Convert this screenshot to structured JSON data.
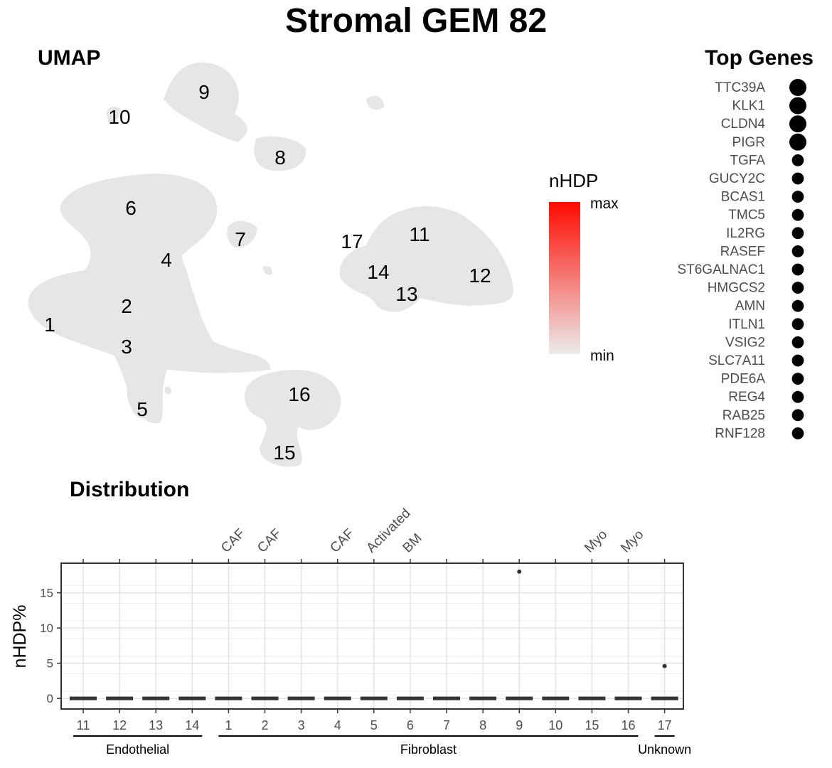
{
  "title": "Stromal GEM 82",
  "umap": {
    "heading": "UMAP",
    "cluster_labels": [
      "1",
      "2",
      "3",
      "4",
      "5",
      "6",
      "7",
      "8",
      "9",
      "10",
      "11",
      "12",
      "13",
      "14",
      "15",
      "16",
      "17"
    ]
  },
  "legend": {
    "title": "nHDP",
    "max_label": "max",
    "min_label": "min",
    "colors": {
      "high": "#ff0a00",
      "low": "#ececec"
    }
  },
  "top_genes": {
    "heading": "Top Genes",
    "genes": [
      "TTC39A",
      "KLK1",
      "CLDN4",
      "PIGR",
      "TGFA",
      "GUCY2C",
      "BCAS1",
      "TMC5",
      "IL2RG",
      "RASEF",
      "ST6GALNAC1",
      "HMGCS2",
      "AMN",
      "ITLN1",
      "VSIG2",
      "SLC7A11",
      "PDE6A",
      "REG4",
      "RAB25",
      "RNF128"
    ],
    "weights": [
      1.0,
      1.0,
      1.0,
      1.0,
      0.55,
      0.55,
      0.55,
      0.55,
      0.55,
      0.55,
      0.55,
      0.55,
      0.55,
      0.55,
      0.55,
      0.55,
      0.55,
      0.55,
      0.55,
      0.55
    ]
  },
  "chart_data": {
    "type": "box",
    "heading": "Distribution",
    "ylabel": "nHDP%",
    "ylim": [
      -1.5,
      19.2
    ],
    "yticks": [
      0,
      5,
      10,
      15
    ],
    "grid": true,
    "categories": [
      "11",
      "12",
      "13",
      "14",
      "1",
      "2",
      "3",
      "4",
      "5",
      "6",
      "7",
      "8",
      "9",
      "10",
      "15",
      "16",
      "17"
    ],
    "top_labels": [
      "",
      "",
      "",
      "",
      "CAF",
      "CAF",
      "",
      "CAF",
      "Activated",
      "BM",
      "",
      "",
      "",
      "",
      "Myo",
      "Myo",
      ""
    ],
    "values": [
      0,
      0,
      0,
      0,
      0,
      0,
      0,
      0,
      0,
      0,
      0,
      0,
      0,
      0,
      0,
      0,
      0
    ],
    "outliers": [
      {
        "category": "9",
        "value": 18
      },
      {
        "category": "17",
        "value": 4.6
      }
    ],
    "groups": [
      {
        "name": "Endothelial",
        "categories": [
          "11",
          "12",
          "13",
          "14"
        ]
      },
      {
        "name": "Fibroblast",
        "categories": [
          "1",
          "2",
          "3",
          "4",
          "5",
          "6",
          "7",
          "8",
          "9",
          "10",
          "15",
          "16"
        ]
      },
      {
        "name": "Unknown",
        "categories": [
          "17"
        ]
      }
    ]
  }
}
